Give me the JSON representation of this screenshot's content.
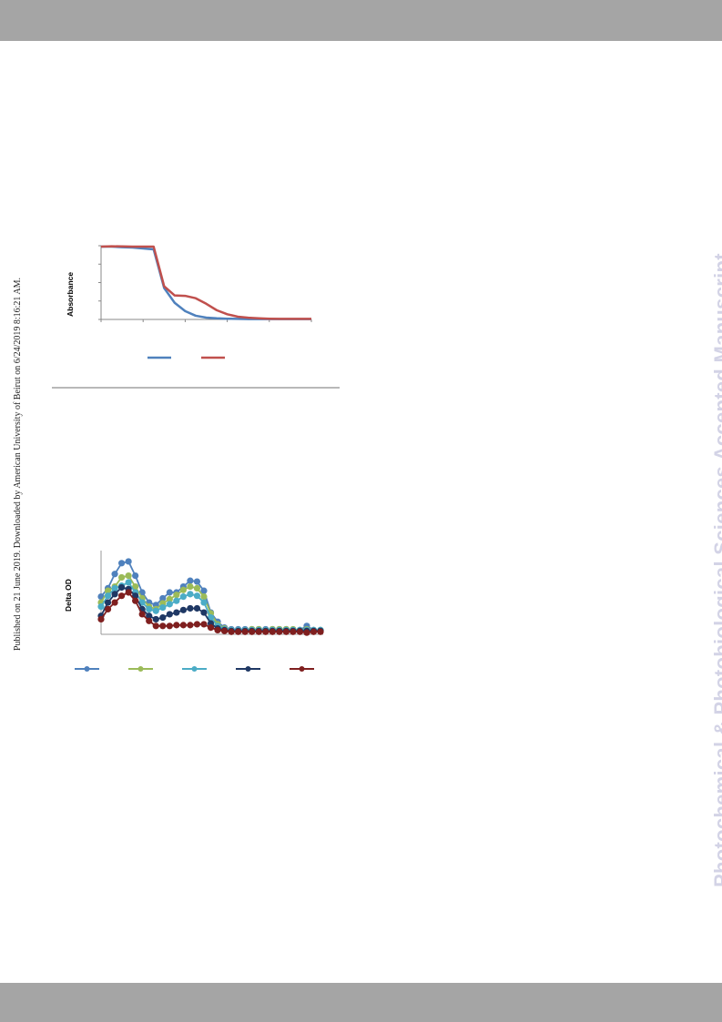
{
  "header_bar": {
    "color": "#a5a5a5"
  },
  "footer_bar": {
    "color": "#a5a5a5"
  },
  "side_note": "Published on 21 June 2019. Downloaded by American University of Beirut on 6/24/2019 8:16:21 AM.",
  "watermark": "Photochemical & Photobiological Sciences Accepted Manuscript",
  "chart_data": [
    {
      "type": "line",
      "ylabel": "Absorbance",
      "xlabel": "",
      "x": [
        0,
        5,
        10,
        15,
        20,
        25,
        30,
        35,
        40,
        45,
        50,
        55,
        60,
        65,
        70,
        75,
        80,
        85,
        90,
        95,
        100
      ],
      "xlim": [
        0,
        100
      ],
      "ylim": [
        0,
        4
      ],
      "series": [
        {
          "color": "#4f81bd",
          "values": [
            3.95,
            3.95,
            3.92,
            3.9,
            3.85,
            3.8,
            1.7,
            0.9,
            0.45,
            0.2,
            0.1,
            0.06,
            0.04,
            0.03,
            0.02,
            0.02,
            0.02,
            0.02,
            0.02,
            0.02,
            0.02
          ]
        },
        {
          "color": "#c0504d",
          "values": [
            3.95,
            3.97,
            3.96,
            3.95,
            3.95,
            3.95,
            1.8,
            1.3,
            1.28,
            1.15,
            0.85,
            0.5,
            0.28,
            0.15,
            0.09,
            0.06,
            0.04,
            0.03,
            0.03,
            0.03,
            0.03
          ]
        }
      ]
    },
    {
      "type": "line",
      "ylabel": "Delta OD",
      "xlabel": "",
      "x": [
        0,
        1,
        2,
        3,
        4,
        5,
        6,
        7,
        8,
        9,
        10,
        11,
        12,
        13,
        14,
        15,
        16,
        17,
        18,
        19,
        20,
        21,
        22,
        23,
        24,
        25,
        26,
        27,
        28,
        29,
        30,
        31,
        32
      ],
      "ylim": [
        0,
        1
      ],
      "series": [
        {
          "color": "#4f81bd",
          "values": [
            0.45,
            0.55,
            0.72,
            0.85,
            0.87,
            0.7,
            0.5,
            0.38,
            0.35,
            0.43,
            0.5,
            0.5,
            0.57,
            0.64,
            0.63,
            0.52,
            0.26,
            0.15,
            0.08,
            0.06,
            0.06,
            0.06,
            0.06,
            0.06,
            0.06,
            0.06,
            0.06,
            0.06,
            0.05,
            0.05,
            0.1,
            0.05,
            0.05
          ]
        },
        {
          "color": "#9bbb59",
          "values": [
            0.38,
            0.52,
            0.57,
            0.68,
            0.7,
            0.57,
            0.43,
            0.33,
            0.3,
            0.37,
            0.42,
            0.47,
            0.53,
            0.57,
            0.55,
            0.45,
            0.25,
            0.12,
            0.07,
            0.05,
            0.05,
            0.05,
            0.06,
            0.06,
            0.05,
            0.06,
            0.06,
            0.06,
            0.06,
            0.05,
            0.06,
            0.05,
            0.05
          ]
        },
        {
          "color": "#4bacc6",
          "values": [
            0.33,
            0.46,
            0.55,
            0.58,
            0.62,
            0.5,
            0.38,
            0.3,
            0.28,
            0.32,
            0.36,
            0.4,
            0.45,
            0.48,
            0.46,
            0.38,
            0.2,
            0.1,
            0.06,
            0.05,
            0.05,
            0.05,
            0.05,
            0.05,
            0.05,
            0.05,
            0.05,
            0.05,
            0.05,
            0.05,
            0.05,
            0.05,
            0.05
          ]
        },
        {
          "color": "#1f3864",
          "values": [
            0.22,
            0.38,
            0.48,
            0.56,
            0.54,
            0.46,
            0.3,
            0.22,
            0.18,
            0.2,
            0.24,
            0.26,
            0.29,
            0.31,
            0.31,
            0.26,
            0.13,
            0.07,
            0.05,
            0.04,
            0.04,
            0.04,
            0.04,
            0.04,
            0.04,
            0.04,
            0.04,
            0.04,
            0.04,
            0.04,
            0.04,
            0.04,
            0.04
          ]
        },
        {
          "color": "#7f1f1f",
          "values": [
            0.18,
            0.3,
            0.38,
            0.46,
            0.5,
            0.4,
            0.24,
            0.16,
            0.1,
            0.1,
            0.1,
            0.11,
            0.11,
            0.11,
            0.12,
            0.12,
            0.08,
            0.05,
            0.04,
            0.03,
            0.03,
            0.03,
            0.03,
            0.03,
            0.03,
            0.03,
            0.03,
            0.03,
            0.03,
            0.03,
            0.02,
            0.03,
            0.03
          ]
        }
      ]
    }
  ]
}
